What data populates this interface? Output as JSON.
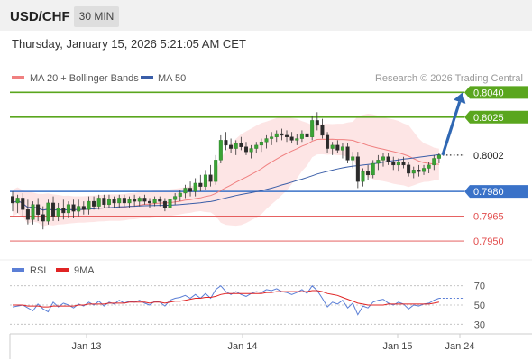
{
  "header": {
    "symbol": "USD/CHF",
    "timeframe": "30 MIN",
    "datetime": "Thursday, January 15, 2026 5:21:05 AM CET"
  },
  "legend": {
    "ma20_label": "MA 20 + Bollinger Bands",
    "ma50_label": "MA 50",
    "copyright": "Research © 2026 Trading Central",
    "colors": {
      "ma20": "#f08080",
      "ma50": "#3a5ea8",
      "bollinger_fill": "#fde0e0"
    }
  },
  "levels": [
    {
      "value": 0.804,
      "label": "0.8040",
      "kind": "resistance",
      "color": "#5aa61e"
    },
    {
      "value": 0.8025,
      "label": "0.8025",
      "kind": "resistance",
      "color": "#5aa61e"
    },
    {
      "value": 0.8002,
      "label": "0.8002",
      "kind": "current",
      "color": "#333333"
    },
    {
      "value": 0.798,
      "label": "0.7980",
      "kind": "pivot",
      "color": "#3a72c8"
    },
    {
      "value": 0.7965,
      "label": "0.7965",
      "kind": "support",
      "color": "#e24b4b"
    },
    {
      "value": 0.795,
      "label": "0.7950",
      "kind": "support",
      "color": "#e24b4b"
    }
  ],
  "rsi_panel": {
    "rsi_label": "RSI",
    "ma_label": "9MA",
    "ticks": [
      "70",
      "50",
      "30"
    ],
    "colors": {
      "rsi": "#5b7fd6",
      "ma": "#e02424"
    }
  },
  "x_axis": {
    "labels": [
      "Jan 13",
      "Jan 14",
      "Jan 15",
      "Jan 24"
    ]
  },
  "chart_data": {
    "type": "candlestick",
    "bar_interval": "30 min",
    "ylim": [
      0.7944,
      0.8044
    ],
    "candles_ohlc": [
      [
        0.7977,
        0.798,
        0.7968,
        0.7973
      ],
      [
        0.7973,
        0.7978,
        0.7967,
        0.7976
      ],
      [
        0.7976,
        0.7979,
        0.7965,
        0.7969
      ],
      [
        0.7969,
        0.7975,
        0.796,
        0.7963
      ],
      [
        0.7963,
        0.7974,
        0.796,
        0.7972
      ],
      [
        0.7972,
        0.7976,
        0.7962,
        0.7966
      ],
      [
        0.7966,
        0.7971,
        0.7957,
        0.7962
      ],
      [
        0.7962,
        0.7975,
        0.796,
        0.7973
      ],
      [
        0.7973,
        0.7977,
        0.7962,
        0.7965
      ],
      [
        0.7965,
        0.7973,
        0.7962,
        0.797
      ],
      [
        0.797,
        0.7975,
        0.7963,
        0.7967
      ],
      [
        0.7967,
        0.7974,
        0.7964,
        0.7972
      ],
      [
        0.7972,
        0.7975,
        0.7964,
        0.7968
      ],
      [
        0.7968,
        0.7975,
        0.7965,
        0.7971
      ],
      [
        0.7971,
        0.7974,
        0.7966,
        0.7969
      ],
      [
        0.7969,
        0.7977,
        0.7966,
        0.7974
      ],
      [
        0.7974,
        0.7977,
        0.7969,
        0.7971
      ],
      [
        0.7971,
        0.7978,
        0.7969,
        0.7976
      ],
      [
        0.7976,
        0.7978,
        0.797,
        0.7972
      ],
      [
        0.7972,
        0.7978,
        0.797,
        0.7975
      ],
      [
        0.7975,
        0.7977,
        0.797,
        0.7973
      ],
      [
        0.7973,
        0.7978,
        0.797,
        0.7976
      ],
      [
        0.7976,
        0.7978,
        0.7971,
        0.7973
      ],
      [
        0.7973,
        0.7977,
        0.797,
        0.7975
      ],
      [
        0.7975,
        0.7978,
        0.7971,
        0.7974
      ],
      [
        0.7974,
        0.7977,
        0.7971,
        0.7976
      ],
      [
        0.7976,
        0.7978,
        0.7972,
        0.7974
      ],
      [
        0.7974,
        0.7976,
        0.797,
        0.7973
      ],
      [
        0.7973,
        0.7977,
        0.7971,
        0.7975
      ],
      [
        0.7975,
        0.7977,
        0.7971,
        0.7974
      ],
      [
        0.7974,
        0.7976,
        0.7968,
        0.797
      ],
      [
        0.797,
        0.7976,
        0.7967,
        0.7975
      ],
      [
        0.7975,
        0.7979,
        0.7972,
        0.7977
      ],
      [
        0.7977,
        0.7981,
        0.7974,
        0.7979
      ],
      [
        0.7979,
        0.7984,
        0.7976,
        0.7982
      ],
      [
        0.7982,
        0.7986,
        0.7977,
        0.798
      ],
      [
        0.798,
        0.7988,
        0.7977,
        0.7985
      ],
      [
        0.7985,
        0.799,
        0.798,
        0.7983
      ],
      [
        0.7983,
        0.7993,
        0.7981,
        0.799
      ],
      [
        0.799,
        0.7996,
        0.7983,
        0.7986
      ],
      [
        0.7986,
        0.8002,
        0.7984,
        0.7999
      ],
      [
        0.7999,
        0.8014,
        0.7997,
        0.8011
      ],
      [
        0.8011,
        0.8016,
        0.8005,
        0.8008
      ],
      [
        0.8008,
        0.8012,
        0.8003,
        0.8006
      ],
      [
        0.8006,
        0.8011,
        0.8002,
        0.8009
      ],
      [
        0.8009,
        0.8013,
        0.8005,
        0.8007
      ],
      [
        0.8007,
        0.801,
        0.8002,
        0.8004
      ],
      [
        0.8004,
        0.8008,
        0.8,
        0.8006
      ],
      [
        0.8006,
        0.801,
        0.8003,
        0.8008
      ],
      [
        0.8008,
        0.8012,
        0.8004,
        0.801
      ],
      [
        0.801,
        0.8014,
        0.8006,
        0.8012
      ],
      [
        0.8012,
        0.8016,
        0.8008,
        0.8013
      ],
      [
        0.8013,
        0.8017,
        0.801,
        0.8015
      ],
      [
        0.8015,
        0.8018,
        0.8011,
        0.8014
      ],
      [
        0.8014,
        0.8017,
        0.801,
        0.8013
      ],
      [
        0.8013,
        0.8016,
        0.8009,
        0.8011
      ],
      [
        0.8011,
        0.8015,
        0.8008,
        0.8012
      ],
      [
        0.8012,
        0.8017,
        0.801,
        0.8015
      ],
      [
        0.8015,
        0.8019,
        0.8011,
        0.8013
      ],
      [
        0.8013,
        0.8026,
        0.8011,
        0.8023
      ],
      [
        0.8023,
        0.8028,
        0.8017,
        0.802
      ],
      [
        0.802,
        0.8024,
        0.8012,
        0.8014
      ],
      [
        0.8014,
        0.8016,
        0.8003,
        0.8006
      ],
      [
        0.8006,
        0.801,
        0.8002,
        0.8008
      ],
      [
        0.8008,
        0.8011,
        0.8003,
        0.8005
      ],
      [
        0.8005,
        0.8009,
        0.8,
        0.8007
      ],
      [
        0.8007,
        0.8009,
        0.7997,
        0.7999
      ],
      [
        0.7999,
        0.8004,
        0.7994,
        0.8001
      ],
      [
        0.8001,
        0.8004,
        0.7982,
        0.7986
      ],
      [
        0.7986,
        0.7994,
        0.7983,
        0.7992
      ],
      [
        0.7992,
        0.7996,
        0.7987,
        0.799
      ],
      [
        0.799,
        0.7999,
        0.7988,
        0.7997
      ],
      [
        0.7997,
        0.8002,
        0.7993,
        0.7999
      ],
      [
        0.7999,
        0.8003,
        0.7995,
        0.8001
      ],
      [
        0.8001,
        0.8003,
        0.7996,
        0.7998
      ],
      [
        0.7998,
        0.8001,
        0.7993,
        0.7996
      ],
      [
        0.7996,
        0.8,
        0.7992,
        0.7998
      ],
      [
        0.7998,
        0.8001,
        0.7994,
        0.7996
      ],
      [
        0.7996,
        0.7998,
        0.7989,
        0.7991
      ],
      [
        0.7991,
        0.7995,
        0.7988,
        0.7993
      ],
      [
        0.7993,
        0.7996,
        0.7989,
        0.7992
      ],
      [
        0.7992,
        0.7996,
        0.799,
        0.7994
      ],
      [
        0.7994,
        0.7998,
        0.7991,
        0.7996
      ],
      [
        0.7996,
        0.8002,
        0.7993,
        0.8
      ],
      [
        0.8,
        0.8003,
        0.7997,
        0.8002
      ]
    ],
    "projection": {
      "from": 0.8002,
      "to": 0.804
    },
    "rsi_ylim": [
      20,
      80
    ],
    "rsi": [
      48,
      49,
      50,
      47,
      44,
      51,
      46,
      43,
      53,
      48,
      52,
      50,
      47,
      51,
      49,
      53,
      50,
      54,
      49,
      53,
      51,
      55,
      52,
      54,
      53,
      55,
      52,
      50,
      54,
      53,
      49,
      55,
      57,
      58,
      60,
      57,
      61,
      57,
      62,
      57,
      66,
      70,
      64,
      61,
      64,
      61,
      59,
      62,
      64,
      63,
      66,
      65,
      67,
      64,
      63,
      61,
      63,
      66,
      62,
      70,
      65,
      57,
      48,
      53,
      51,
      55,
      47,
      52,
      40,
      49,
      47,
      53,
      55,
      56,
      52,
      50,
      53,
      51,
      46,
      50,
      49,
      51,
      52,
      55,
      57
    ],
    "rsi_ma": [
      50,
      50,
      50,
      49,
      49,
      49,
      48,
      48,
      49,
      49,
      49,
      49,
      49,
      50,
      50,
      51,
      51,
      51,
      51,
      52,
      52,
      52,
      52,
      53,
      53,
      53,
      53,
      52,
      53,
      53,
      52,
      53,
      54,
      54,
      55,
      56,
      57,
      57,
      58,
      58,
      59,
      61,
      62,
      62,
      62,
      62,
      62,
      62,
      62,
      62,
      63,
      63,
      64,
      64,
      64,
      64,
      64,
      64,
      64,
      65,
      65,
      64,
      62,
      61,
      60,
      58,
      56,
      54,
      52,
      51,
      50,
      50,
      50,
      50,
      51,
      51,
      51,
      51,
      51,
      51,
      51,
      51,
      51,
      52,
      53
    ]
  }
}
